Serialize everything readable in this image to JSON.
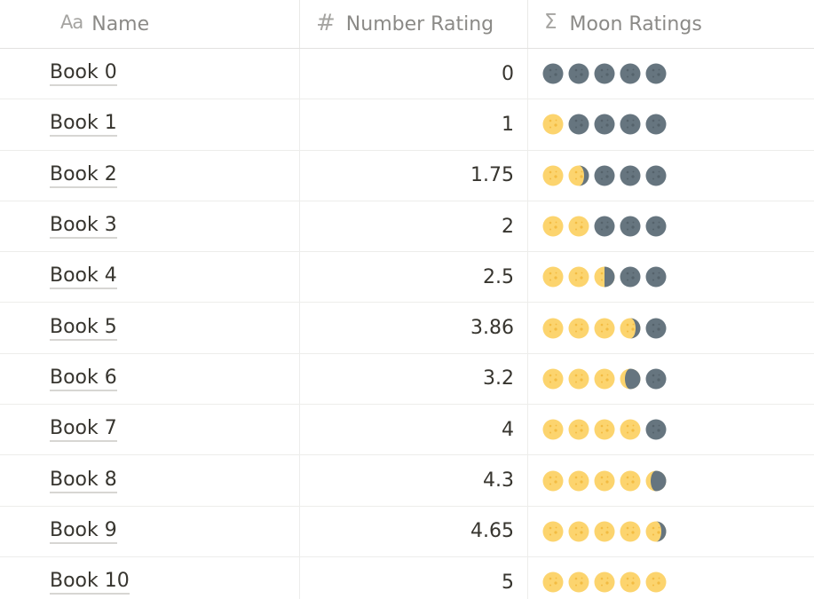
{
  "header": {
    "name_icon": "Aa",
    "name_label": "Name",
    "number_icon": "#",
    "number_label": "Number Rating",
    "moons_icon": "Σ",
    "moons_label": "Moon Ratings"
  },
  "colors": {
    "full_moon": "#fcd46e",
    "full_moon_spot": "#f3bb41",
    "new_moon": "#66757f",
    "new_moon_spot": "#55626b"
  },
  "rows": [
    {
      "name": "Book 0",
      "rating": "0",
      "moons": [
        "new",
        "new",
        "new",
        "new",
        "new"
      ]
    },
    {
      "name": "Book 1",
      "rating": "1",
      "moons": [
        "full",
        "new",
        "new",
        "new",
        "new"
      ]
    },
    {
      "name": "Book 2",
      "rating": "1.75",
      "moons": [
        "full",
        "waxing-gibbous",
        "new",
        "new",
        "new"
      ]
    },
    {
      "name": "Book 3",
      "rating": "2",
      "moons": [
        "full",
        "full",
        "new",
        "new",
        "new"
      ]
    },
    {
      "name": "Book 4",
      "rating": "2.5",
      "moons": [
        "full",
        "full",
        "first-quarter",
        "new",
        "new"
      ]
    },
    {
      "name": "Book 5",
      "rating": "3.86",
      "moons": [
        "full",
        "full",
        "full",
        "waxing-gibbous",
        "new"
      ]
    },
    {
      "name": "Book 6",
      "rating": "3.2",
      "moons": [
        "full",
        "full",
        "full",
        "waxing-crescent",
        "new"
      ]
    },
    {
      "name": "Book 7",
      "rating": "4",
      "moons": [
        "full",
        "full",
        "full",
        "full",
        "new"
      ]
    },
    {
      "name": "Book 8",
      "rating": "4.3",
      "moons": [
        "full",
        "full",
        "full",
        "full",
        "waxing-crescent"
      ]
    },
    {
      "name": "Book 9",
      "rating": "4.65",
      "moons": [
        "full",
        "full",
        "full",
        "full",
        "waxing-gibbous"
      ]
    },
    {
      "name": "Book 10",
      "rating": "5",
      "moons": [
        "full",
        "full",
        "full",
        "full",
        "full"
      ]
    }
  ]
}
